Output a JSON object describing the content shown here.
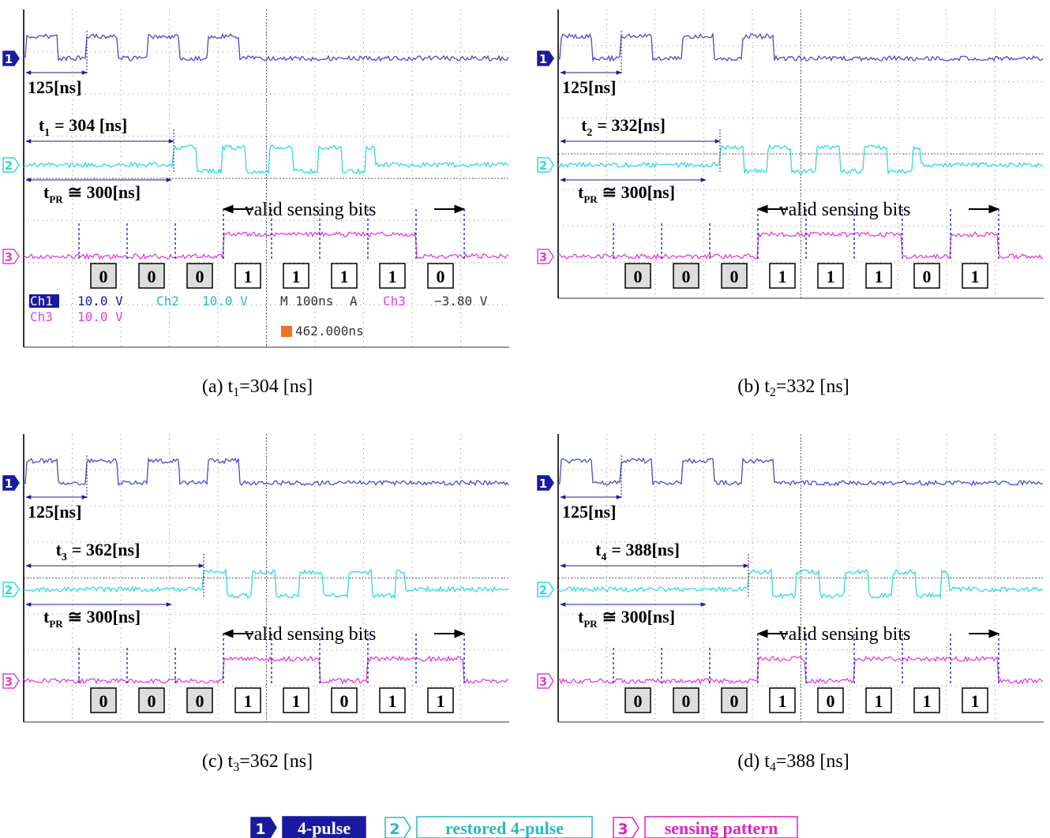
{
  "panels": [
    {
      "channel_markers": [
        "1",
        "2",
        "3"
      ],
      "period": "125[ns]",
      "t": {
        "symbol": "t",
        "sub": "1",
        "value": "= 304 [ns]"
      },
      "tpr": {
        "symbol": "t",
        "sub": "PR",
        "value": "≅ 300[ns]"
      },
      "valid": "valid sensing bits",
      "bits": [
        "0",
        "0",
        "0",
        "1",
        "1",
        "1",
        "1",
        "0"
      ],
      "caption": {
        "prefix": "(a) t",
        "sub": "1",
        "value": "=304 [ns]"
      },
      "readout": [
        "Ch1",
        "10.0 V",
        "Ch2",
        "10.0 V",
        "M 100ns",
        "A",
        "Ch3",
        "−3.80 V",
        "Ch3",
        "10.0 V",
        "462.000ns"
      ]
    },
    {
      "channel_markers": [
        "1",
        "2",
        "3"
      ],
      "period": "125[ns]",
      "t": {
        "symbol": "t",
        "sub": "2",
        "value": "= 332[ns]"
      },
      "tpr": {
        "symbol": "t",
        "sub": "PR",
        "value": "≅ 300[ns]"
      },
      "valid": "valid sensing bits",
      "bits": [
        "0",
        "0",
        "0",
        "1",
        "1",
        "1",
        "0",
        "1"
      ],
      "caption": {
        "prefix": "(b) t",
        "sub": "2",
        "value": "=332 [ns]"
      }
    },
    {
      "channel_markers": [
        "1",
        "2",
        "3"
      ],
      "period": "125[ns]",
      "t": {
        "symbol": "t",
        "sub": "3",
        "value": "= 362[ns]"
      },
      "tpr": {
        "symbol": "t",
        "sub": "PR",
        "value": "≅ 300[ns]"
      },
      "valid": "valid sensing bits",
      "bits": [
        "0",
        "0",
        "0",
        "1",
        "1",
        "0",
        "1",
        "1"
      ],
      "caption": {
        "prefix": "(c) t",
        "sub": "3",
        "value": "=362 [ns]"
      }
    },
    {
      "channel_markers": [
        "1",
        "2",
        "3"
      ],
      "period": "125[ns]",
      "t": {
        "symbol": "t",
        "sub": "4",
        "value": "= 388[ns]"
      },
      "tpr": {
        "symbol": "t",
        "sub": "PR",
        "value": "≅ 300[ns]"
      },
      "valid": "valid sensing bits",
      "bits": [
        "0",
        "0",
        "0",
        "1",
        "0",
        "1",
        "1",
        "1"
      ],
      "caption": {
        "prefix": "(d) t",
        "sub": "4",
        "value": "=388 [ns]"
      }
    }
  ],
  "legend": [
    {
      "num": "1",
      "label": "4-pulse"
    },
    {
      "num": "2",
      "label": "restored 4-pulse"
    },
    {
      "num": "3",
      "label": "sensing pattern"
    }
  ]
}
